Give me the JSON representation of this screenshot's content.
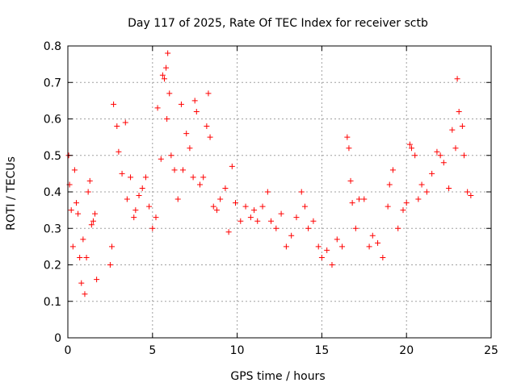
{
  "chart_data": {
    "type": "scatter",
    "title": "Day 117 of 2025, Rate Of TEC Index for receiver sctb",
    "xlabel": "GPS time / hours",
    "ylabel": "ROTI / TECUs",
    "xlim": [
      0,
      25
    ],
    "ylim": [
      0,
      0.8
    ],
    "xticks": [
      0,
      5,
      10,
      15,
      20,
      25
    ],
    "xtick_labels": [
      "0",
      "5",
      "10",
      "15",
      "20",
      "25"
    ],
    "yticks": [
      0,
      0.1,
      0.2,
      0.3,
      0.4,
      0.5,
      0.6,
      0.7,
      0.8
    ],
    "ytick_labels": [
      "0",
      "0.1",
      "0.2",
      "0.3",
      "0.4",
      "0.5",
      "0.6",
      "0.7",
      "0.8"
    ],
    "grid": true,
    "marker": "+",
    "color": "#ff0000",
    "series": [
      {
        "points": [
          [
            0.05,
            0.5
          ],
          [
            0.1,
            0.42
          ],
          [
            0.2,
            0.35
          ],
          [
            0.3,
            0.25
          ],
          [
            0.4,
            0.46
          ],
          [
            0.5,
            0.37
          ],
          [
            0.6,
            0.34
          ],
          [
            0.7,
            0.22
          ],
          [
            0.8,
            0.15
          ],
          [
            0.9,
            0.27
          ],
          [
            1.0,
            0.12
          ],
          [
            1.1,
            0.22
          ],
          [
            1.2,
            0.4
          ],
          [
            1.3,
            0.43
          ],
          [
            1.4,
            0.31
          ],
          [
            1.5,
            0.32
          ],
          [
            1.6,
            0.34
          ],
          [
            1.7,
            0.16
          ],
          [
            2.5,
            0.2
          ],
          [
            2.6,
            0.25
          ],
          [
            2.7,
            0.64
          ],
          [
            2.9,
            0.58
          ],
          [
            3.0,
            0.51
          ],
          [
            3.2,
            0.45
          ],
          [
            3.4,
            0.59
          ],
          [
            3.5,
            0.38
          ],
          [
            3.7,
            0.44
          ],
          [
            3.9,
            0.33
          ],
          [
            4.0,
            0.35
          ],
          [
            4.2,
            0.39
          ],
          [
            4.4,
            0.41
          ],
          [
            4.6,
            0.44
          ],
          [
            4.8,
            0.36
          ],
          [
            5.0,
            0.3
          ],
          [
            5.2,
            0.33
          ],
          [
            5.3,
            0.63
          ],
          [
            5.5,
            0.49
          ],
          [
            5.6,
            0.72
          ],
          [
            5.7,
            0.71
          ],
          [
            5.8,
            0.74
          ],
          [
            5.85,
            0.6
          ],
          [
            5.9,
            0.78
          ],
          [
            6.0,
            0.67
          ],
          [
            6.1,
            0.5
          ],
          [
            6.3,
            0.46
          ],
          [
            6.5,
            0.38
          ],
          [
            6.7,
            0.64
          ],
          [
            6.8,
            0.46
          ],
          [
            7.0,
            0.56
          ],
          [
            7.2,
            0.52
          ],
          [
            7.4,
            0.44
          ],
          [
            7.5,
            0.65
          ],
          [
            7.6,
            0.62
          ],
          [
            7.8,
            0.42
          ],
          [
            8.0,
            0.44
          ],
          [
            8.2,
            0.58
          ],
          [
            8.3,
            0.67
          ],
          [
            8.4,
            0.55
          ],
          [
            8.6,
            0.36
          ],
          [
            8.8,
            0.35
          ],
          [
            9.0,
            0.38
          ],
          [
            9.3,
            0.41
          ],
          [
            9.5,
            0.29
          ],
          [
            9.7,
            0.47
          ],
          [
            9.9,
            0.37
          ],
          [
            10.2,
            0.32
          ],
          [
            10.5,
            0.36
          ],
          [
            10.8,
            0.33
          ],
          [
            11.0,
            0.35
          ],
          [
            11.2,
            0.32
          ],
          [
            11.5,
            0.36
          ],
          [
            11.8,
            0.4
          ],
          [
            12.0,
            0.32
          ],
          [
            12.3,
            0.3
          ],
          [
            12.6,
            0.34
          ],
          [
            12.9,
            0.25
          ],
          [
            13.2,
            0.28
          ],
          [
            13.5,
            0.33
          ],
          [
            13.8,
            0.4
          ],
          [
            14.0,
            0.36
          ],
          [
            14.2,
            0.3
          ],
          [
            14.5,
            0.32
          ],
          [
            14.8,
            0.25
          ],
          [
            15.0,
            0.22
          ],
          [
            15.3,
            0.24
          ],
          [
            15.6,
            0.2
          ],
          [
            15.9,
            0.27
          ],
          [
            16.2,
            0.25
          ],
          [
            16.5,
            0.55
          ],
          [
            16.6,
            0.52
          ],
          [
            16.7,
            0.43
          ],
          [
            16.8,
            0.37
          ],
          [
            17.0,
            0.3
          ],
          [
            17.2,
            0.38
          ],
          [
            17.5,
            0.38
          ],
          [
            17.8,
            0.25
          ],
          [
            18.0,
            0.28
          ],
          [
            18.3,
            0.26
          ],
          [
            18.6,
            0.22
          ],
          [
            18.9,
            0.36
          ],
          [
            19.0,
            0.42
          ],
          [
            19.2,
            0.46
          ],
          [
            19.5,
            0.3
          ],
          [
            19.8,
            0.35
          ],
          [
            20.0,
            0.37
          ],
          [
            20.2,
            0.53
          ],
          [
            20.3,
            0.52
          ],
          [
            20.5,
            0.5
          ],
          [
            20.7,
            0.38
          ],
          [
            20.9,
            0.42
          ],
          [
            21.2,
            0.4
          ],
          [
            21.5,
            0.45
          ],
          [
            21.8,
            0.51
          ],
          [
            22.0,
            0.5
          ],
          [
            22.2,
            0.48
          ],
          [
            22.5,
            0.41
          ],
          [
            22.7,
            0.57
          ],
          [
            22.9,
            0.52
          ],
          [
            23.0,
            0.71
          ],
          [
            23.1,
            0.62
          ],
          [
            23.3,
            0.58
          ],
          [
            23.4,
            0.5
          ],
          [
            23.6,
            0.4
          ],
          [
            23.8,
            0.39
          ]
        ]
      }
    ]
  }
}
